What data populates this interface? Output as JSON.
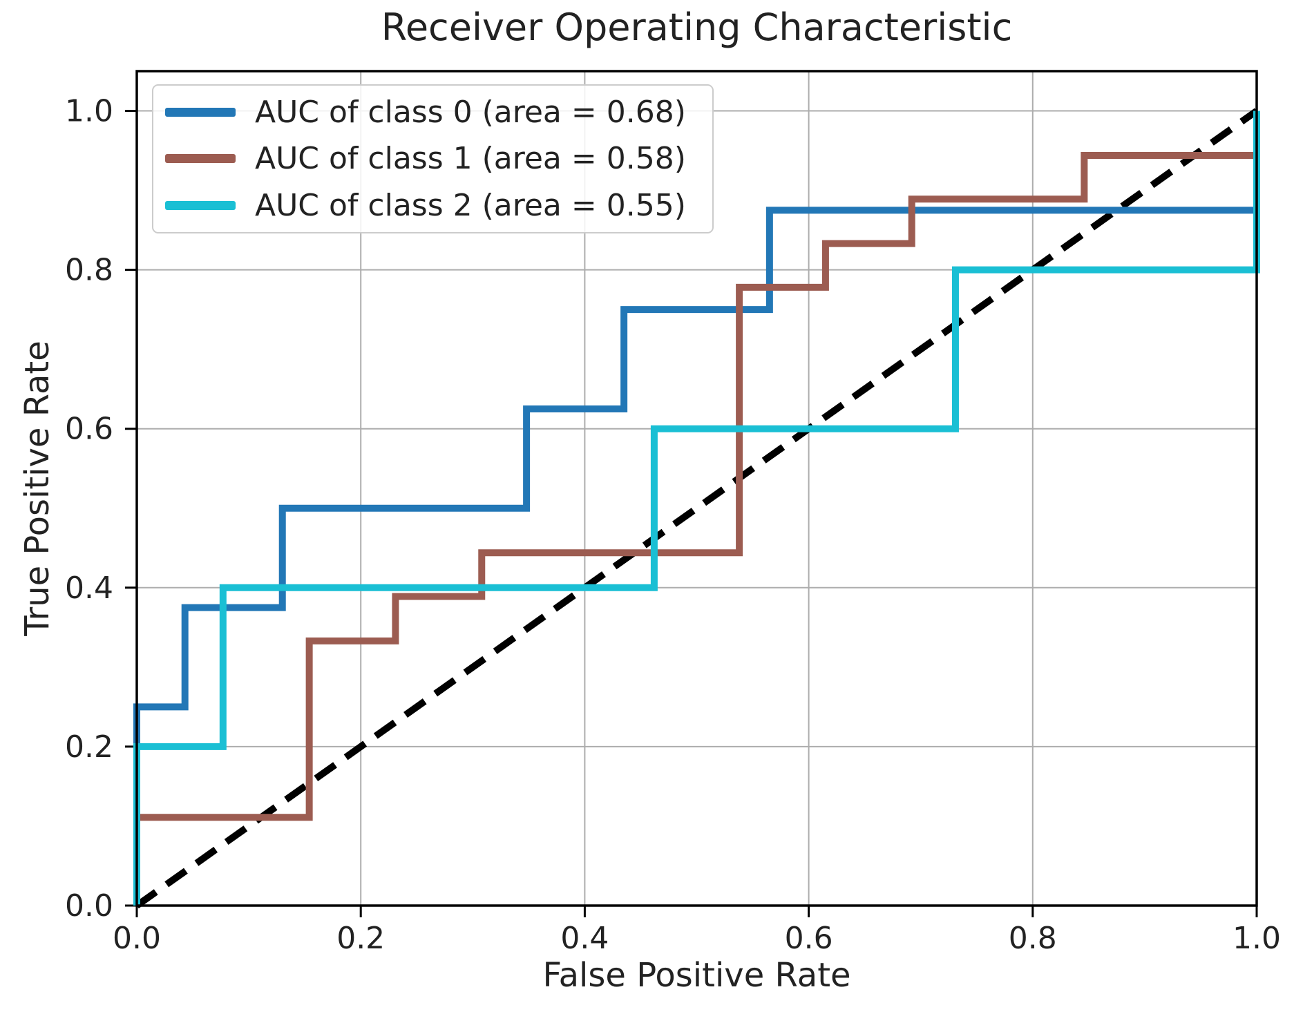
{
  "title": "Receiver Operating Characteristic",
  "chart_data": {
    "type": "line",
    "variant": "roc-step-curves",
    "title": "Receiver Operating Characteristic",
    "xlabel": "False Positive Rate",
    "ylabel": "True Positive Rate",
    "xlim": [
      0,
      1
    ],
    "ylim": [
      0,
      1.05
    ],
    "xticks": [
      0,
      0.2,
      0.4,
      0.6,
      0.8,
      1
    ],
    "xtick_labels": [
      "0.0",
      "0.2",
      "0.4",
      "0.6",
      "0.8",
      "1.0"
    ],
    "yticks": [
      0,
      0.2,
      0.4,
      0.6,
      0.8,
      1
    ],
    "ytick_labels": [
      "0.0",
      "0.2",
      "0.4",
      "0.6",
      "0.8",
      "1.0"
    ],
    "grid": true,
    "legend_position": "upper-left",
    "colors": {
      "grid": "#adadad",
      "axis": "#000000",
      "text": "#222222",
      "reference": "#000000",
      "background": "#ffffff"
    },
    "reference_line": {
      "label": "chance-diagonal",
      "dashed": true,
      "x": [
        0,
        1
      ],
      "y": [
        0,
        1
      ]
    },
    "series": [
      {
        "label": "AUC of class 0 (area = 0.68)",
        "class": 0,
        "auc": 0.68,
        "color": "#2277b6",
        "x": [
          0,
          0,
          0.043,
          0.043,
          0.13,
          0.13,
          0.348,
          0.348,
          0.435,
          0.435,
          0.565,
          0.565,
          1.0,
          1.0
        ],
        "y": [
          0,
          0.25,
          0.25,
          0.375,
          0.375,
          0.5,
          0.5,
          0.625,
          0.625,
          0.75,
          0.75,
          0.875,
          0.875,
          1.0
        ]
      },
      {
        "label": "AUC of class 1 (area = 0.58)",
        "class": 1,
        "auc": 0.58,
        "color": "#9c5c51",
        "x": [
          0,
          0,
          0.154,
          0.154,
          0.231,
          0.231,
          0.308,
          0.308,
          0.538,
          0.538,
          0.615,
          0.615,
          0.692,
          0.692,
          0.846,
          0.846,
          1.0,
          1.0
        ],
        "y": [
          0,
          0.111,
          0.111,
          0.333,
          0.333,
          0.389,
          0.389,
          0.444,
          0.444,
          0.778,
          0.778,
          0.833,
          0.833,
          0.889,
          0.889,
          0.944,
          0.944,
          1.0
        ]
      },
      {
        "label": "AUC of class 2 (area = 0.55)",
        "class": 2,
        "auc": 0.55,
        "color": "#1abfd4",
        "x": [
          0,
          0,
          0.077,
          0.077,
          0.462,
          0.462,
          0.731,
          0.731,
          1.0,
          1.0
        ],
        "y": [
          0,
          0.2,
          0.2,
          0.4,
          0.4,
          0.6,
          0.6,
          0.8,
          0.8,
          1.0
        ]
      }
    ]
  }
}
